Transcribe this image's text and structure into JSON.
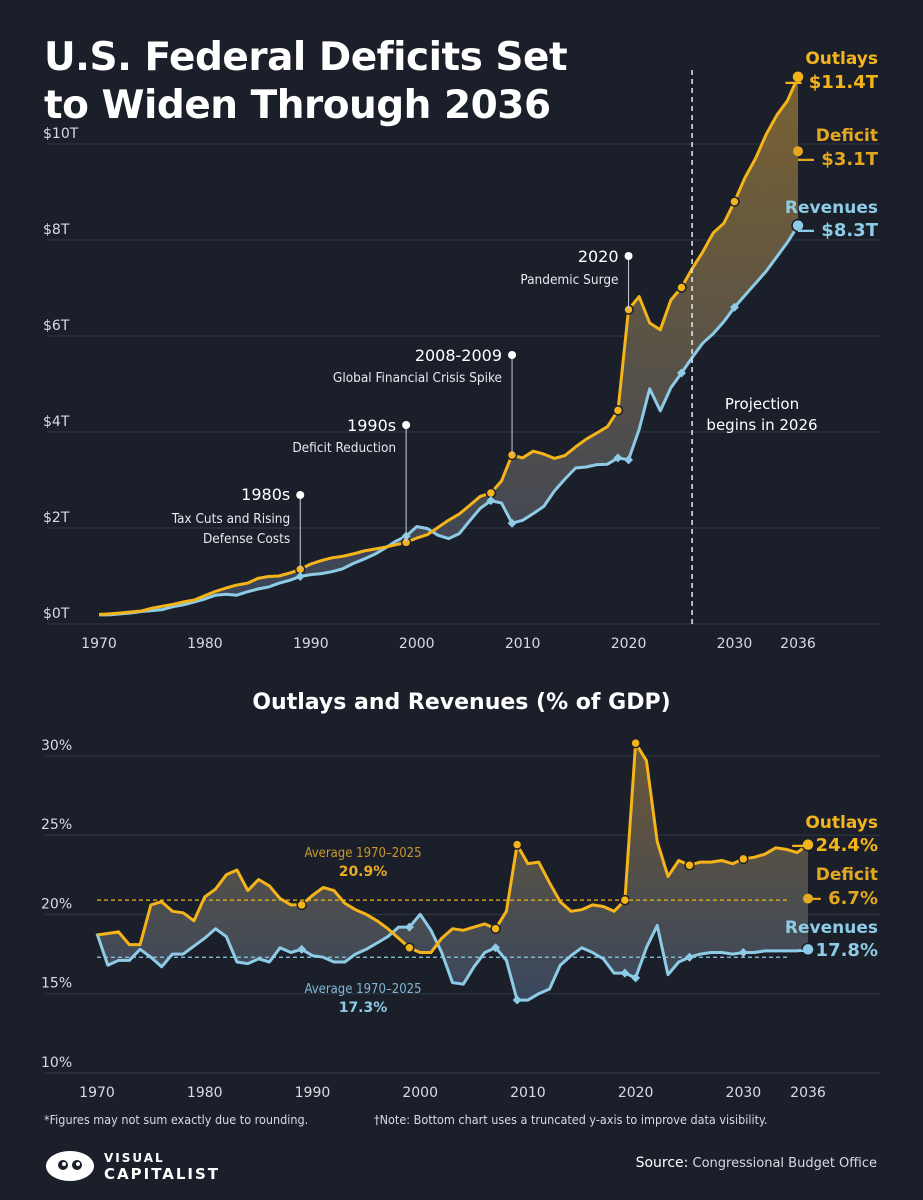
{
  "title": "U.S. Federal Deficits Set to Widen Through 2036",
  "subtitle": "Outlays and Revenues (% of GDP)",
  "footnote_left": "*Figures may not sum exactly due to rounding.",
  "footnote_right": "†Note: Bottom chart uses a truncated y-axis to improve data visibility.",
  "logo": {
    "line1": "VISUAL",
    "line2": "CAPITALIST"
  },
  "source": {
    "label": "Source:",
    "text": "Congressional Budget Office"
  },
  "colors": {
    "outlays": "#f4b41a",
    "revenues": "#8dcbe6",
    "deficit_label": "#e3a720",
    "background": "#1b1f2a",
    "grid": "#333948",
    "text": "#ffffff",
    "muted": "#d7dbe3"
  },
  "chart_data": [
    {
      "type": "area",
      "ylim": [
        0,
        11.5
      ],
      "xlim": [
        1970,
        2036
      ],
      "y_ticks": [
        {
          "value": 0,
          "label": "$0T"
        },
        {
          "value": 2,
          "label": "$2T"
        },
        {
          "value": 4,
          "label": "$4T"
        },
        {
          "value": 6,
          "label": "$6T"
        },
        {
          "value": 8,
          "label": "$8T"
        },
        {
          "value": 10,
          "label": "$10T"
        }
      ],
      "x_ticks": [
        {
          "value": 1970,
          "label": "1970"
        },
        {
          "value": 1980,
          "label": "1980"
        },
        {
          "value": 1990,
          "label": "1990"
        },
        {
          "value": 2000,
          "label": "2000"
        },
        {
          "value": 2010,
          "label": "2010"
        },
        {
          "value": 2020,
          "label": "2020"
        },
        {
          "value": 2030,
          "label": "2030"
        },
        {
          "value": 2036,
          "label": "2036"
        }
      ],
      "grid": true,
      "projection": {
        "year": 2026,
        "label_line1": "Projection",
        "label_line2": "begins in 2026"
      },
      "series": [
        {
          "name": "Outlays",
          "end_label": "$11.4T",
          "x": [
            1970,
            1971,
            1972,
            1973,
            1974,
            1975,
            1976,
            1977,
            1978,
            1979,
            1980,
            1981,
            1982,
            1983,
            1984,
            1985,
            1986,
            1987,
            1988,
            1989,
            1990,
            1991,
            1992,
            1993,
            1994,
            1995,
            1996,
            1997,
            1998,
            1999,
            2000,
            2001,
            2002,
            2003,
            2004,
            2005,
            2006,
            2007,
            2008,
            2009,
            2010,
            2011,
            2012,
            2013,
            2014,
            2015,
            2016,
            2017,
            2018,
            2019,
            2020,
            2021,
            2022,
            2023,
            2024,
            2025,
            2026,
            2027,
            2028,
            2029,
            2030,
            2031,
            2032,
            2033,
            2034,
            2035,
            2036
          ],
          "values": [
            0.2,
            0.21,
            0.23,
            0.25,
            0.27,
            0.33,
            0.37,
            0.41,
            0.46,
            0.5,
            0.59,
            0.68,
            0.75,
            0.81,
            0.85,
            0.95,
            0.99,
            1.0,
            1.06,
            1.14,
            1.25,
            1.32,
            1.38,
            1.41,
            1.46,
            1.52,
            1.56,
            1.6,
            1.65,
            1.7,
            1.79,
            1.86,
            2.01,
            2.16,
            2.29,
            2.47,
            2.66,
            2.73,
            2.98,
            3.52,
            3.46,
            3.6,
            3.54,
            3.45,
            3.51,
            3.69,
            3.85,
            3.98,
            4.11,
            4.45,
            6.55,
            6.82,
            6.27,
            6.13,
            6.75,
            7.01,
            7.4,
            7.75,
            8.15,
            8.35,
            8.8,
            9.3,
            9.7,
            10.2,
            10.6,
            10.9,
            11.4
          ],
          "markers": [
            1989,
            1999,
            2007,
            2009,
            2019,
            2020,
            2025,
            2030,
            2036
          ]
        },
        {
          "name": "Revenues",
          "end_label": "$8.3T",
          "x": [
            1970,
            1971,
            1972,
            1973,
            1974,
            1975,
            1976,
            1977,
            1978,
            1979,
            1980,
            1981,
            1982,
            1983,
            1984,
            1985,
            1986,
            1987,
            1988,
            1989,
            1990,
            1991,
            1992,
            1993,
            1994,
            1995,
            1996,
            1997,
            1998,
            1999,
            2000,
            2001,
            2002,
            2003,
            2004,
            2005,
            2006,
            2007,
            2008,
            2009,
            2010,
            2011,
            2012,
            2013,
            2014,
            2015,
            2016,
            2017,
            2018,
            2019,
            2020,
            2021,
            2022,
            2023,
            2024,
            2025,
            2026,
            2027,
            2028,
            2029,
            2030,
            2031,
            2032,
            2033,
            2034,
            2035,
            2036
          ],
          "values": [
            0.19,
            0.19,
            0.21,
            0.23,
            0.26,
            0.28,
            0.3,
            0.36,
            0.4,
            0.46,
            0.52,
            0.6,
            0.62,
            0.6,
            0.67,
            0.73,
            0.77,
            0.85,
            0.91,
            0.99,
            1.03,
            1.05,
            1.09,
            1.15,
            1.26,
            1.35,
            1.45,
            1.58,
            1.72,
            1.83,
            2.03,
            1.99,
            1.85,
            1.78,
            1.88,
            2.15,
            2.41,
            2.57,
            2.52,
            2.1,
            2.16,
            2.3,
            2.45,
            2.77,
            3.02,
            3.25,
            3.27,
            3.32,
            3.33,
            3.46,
            3.42,
            4.05,
            4.9,
            4.44,
            4.92,
            5.23,
            5.55,
            5.85,
            6.05,
            6.3,
            6.6,
            6.85,
            7.1,
            7.35,
            7.65,
            7.95,
            8.3
          ],
          "markers": [
            1989,
            1999,
            2007,
            2009,
            2019,
            2020,
            2025,
            2030,
            2036
          ]
        }
      ],
      "deficit": {
        "name": "Deficit",
        "value_label": "$3.1T"
      },
      "annotations": [
        {
          "year": 1989,
          "line1": "1980s",
          "line2": "Tax Cuts and Rising",
          "line3": "Defense Costs"
        },
        {
          "year": 1999,
          "line1": "1990s",
          "line2": "Deficit Reduction"
        },
        {
          "year": 2009,
          "line1": "2008-2009",
          "line2": "Global Financial Crisis Spike"
        },
        {
          "year": 2020,
          "line1": "2020",
          "line2": "Pandemic Surge"
        }
      ]
    },
    {
      "type": "area",
      "title": "Outlays and Revenues (% of GDP)",
      "ylim": [
        10,
        31
      ],
      "xlim": [
        1970,
        2036
      ],
      "y_ticks": [
        {
          "value": 10,
          "label": "10%"
        },
        {
          "value": 15,
          "label": "15%"
        },
        {
          "value": 20,
          "label": "20%"
        },
        {
          "value": 25,
          "label": "25%"
        },
        {
          "value": 30,
          "label": "30%"
        }
      ],
      "x_ticks": [
        {
          "value": 1970,
          "label": "1970"
        },
        {
          "value": 1980,
          "label": "1980"
        },
        {
          "value": 1990,
          "label": "1990"
        },
        {
          "value": 2000,
          "label": "2000"
        },
        {
          "value": 2010,
          "label": "2010"
        },
        {
          "value": 2020,
          "label": "2020"
        },
        {
          "value": 2030,
          "label": "2030"
        },
        {
          "value": 2036,
          "label": "2036"
        }
      ],
      "grid": true,
      "series": [
        {
          "name": "Outlays",
          "end_label": "24.4%",
          "x": [
            1970,
            1971,
            1972,
            1973,
            1974,
            1975,
            1976,
            1977,
            1978,
            1979,
            1980,
            1981,
            1982,
            1983,
            1984,
            1985,
            1986,
            1987,
            1988,
            1989,
            1990,
            1991,
            1992,
            1993,
            1994,
            1995,
            1996,
            1997,
            1998,
            1999,
            2000,
            2001,
            2002,
            2003,
            2004,
            2005,
            2006,
            2007,
            2008,
            2009,
            2010,
            2011,
            2012,
            2013,
            2014,
            2015,
            2016,
            2017,
            2018,
            2019,
            2020,
            2021,
            2022,
            2023,
            2024,
            2025,
            2026,
            2027,
            2028,
            2029,
            2030,
            2031,
            2032,
            2033,
            2034,
            2035,
            2036
          ],
          "values": [
            18.7,
            18.8,
            18.9,
            18.1,
            18.1,
            20.6,
            20.8,
            20.2,
            20.1,
            19.6,
            21.1,
            21.6,
            22.5,
            22.8,
            21.5,
            22.2,
            21.8,
            21.0,
            20.6,
            20.6,
            21.2,
            21.7,
            21.5,
            20.7,
            20.3,
            20.0,
            19.6,
            19.1,
            18.5,
            17.9,
            17.6,
            17.6,
            18.5,
            19.1,
            19.0,
            19.2,
            19.4,
            19.1,
            20.2,
            24.4,
            23.2,
            23.3,
            22.0,
            20.8,
            20.2,
            20.3,
            20.6,
            20.5,
            20.2,
            20.9,
            30.8,
            29.7,
            24.6,
            22.4,
            23.4,
            23.1,
            23.3,
            23.3,
            23.4,
            23.2,
            23.5,
            23.6,
            23.8,
            24.2,
            24.1,
            23.9,
            24.4
          ],
          "markers": [
            1989,
            1999,
            2007,
            2009,
            2019,
            2020,
            2025,
            2030,
            2036
          ]
        },
        {
          "name": "Revenues",
          "end_label": "17.8%",
          "x": [
            1970,
            1971,
            1972,
            1973,
            1974,
            1975,
            1976,
            1977,
            1978,
            1979,
            1980,
            1981,
            1982,
            1983,
            1984,
            1985,
            1986,
            1987,
            1988,
            1989,
            1990,
            1991,
            1992,
            1993,
            1994,
            1995,
            1996,
            1997,
            1998,
            1999,
            2000,
            2001,
            2002,
            2003,
            2004,
            2005,
            2006,
            2007,
            2008,
            2009,
            2010,
            2011,
            2012,
            2013,
            2014,
            2015,
            2016,
            2017,
            2018,
            2019,
            2020,
            2021,
            2022,
            2023,
            2024,
            2025,
            2026,
            2027,
            2028,
            2029,
            2030,
            2031,
            2032,
            2033,
            2034,
            2035,
            2036
          ],
          "values": [
            18.8,
            16.8,
            17.1,
            17.1,
            17.8,
            17.3,
            16.7,
            17.5,
            17.5,
            18.0,
            18.5,
            19.1,
            18.6,
            17.0,
            16.9,
            17.2,
            17.0,
            17.9,
            17.6,
            17.8,
            17.4,
            17.3,
            17.0,
            17.0,
            17.5,
            17.8,
            18.2,
            18.6,
            19.2,
            19.2,
            20.0,
            19.0,
            17.6,
            15.7,
            15.6,
            16.7,
            17.6,
            17.9,
            17.1,
            14.6,
            14.6,
            15.0,
            15.3,
            16.8,
            17.4,
            17.9,
            17.6,
            17.2,
            16.3,
            16.3,
            16.0,
            17.9,
            19.3,
            16.2,
            17.0,
            17.3,
            17.5,
            17.6,
            17.6,
            17.5,
            17.6,
            17.6,
            17.7,
            17.7,
            17.7,
            17.7,
            17.8
          ],
          "markers": [
            1989,
            1999,
            2007,
            2009,
            2019,
            2020,
            2025,
            2030,
            2036
          ]
        }
      ],
      "deficit": {
        "name": "Deficit",
        "value_label": "6.7%"
      },
      "averages": [
        {
          "series": "Outlays",
          "value": 20.9,
          "label_line1": "Average 1970–2025",
          "label_line2": "20.9%"
        },
        {
          "series": "Revenues",
          "value": 17.3,
          "label_line1": "Average 1970–2025",
          "label_line2": "17.3%"
        }
      ]
    }
  ]
}
